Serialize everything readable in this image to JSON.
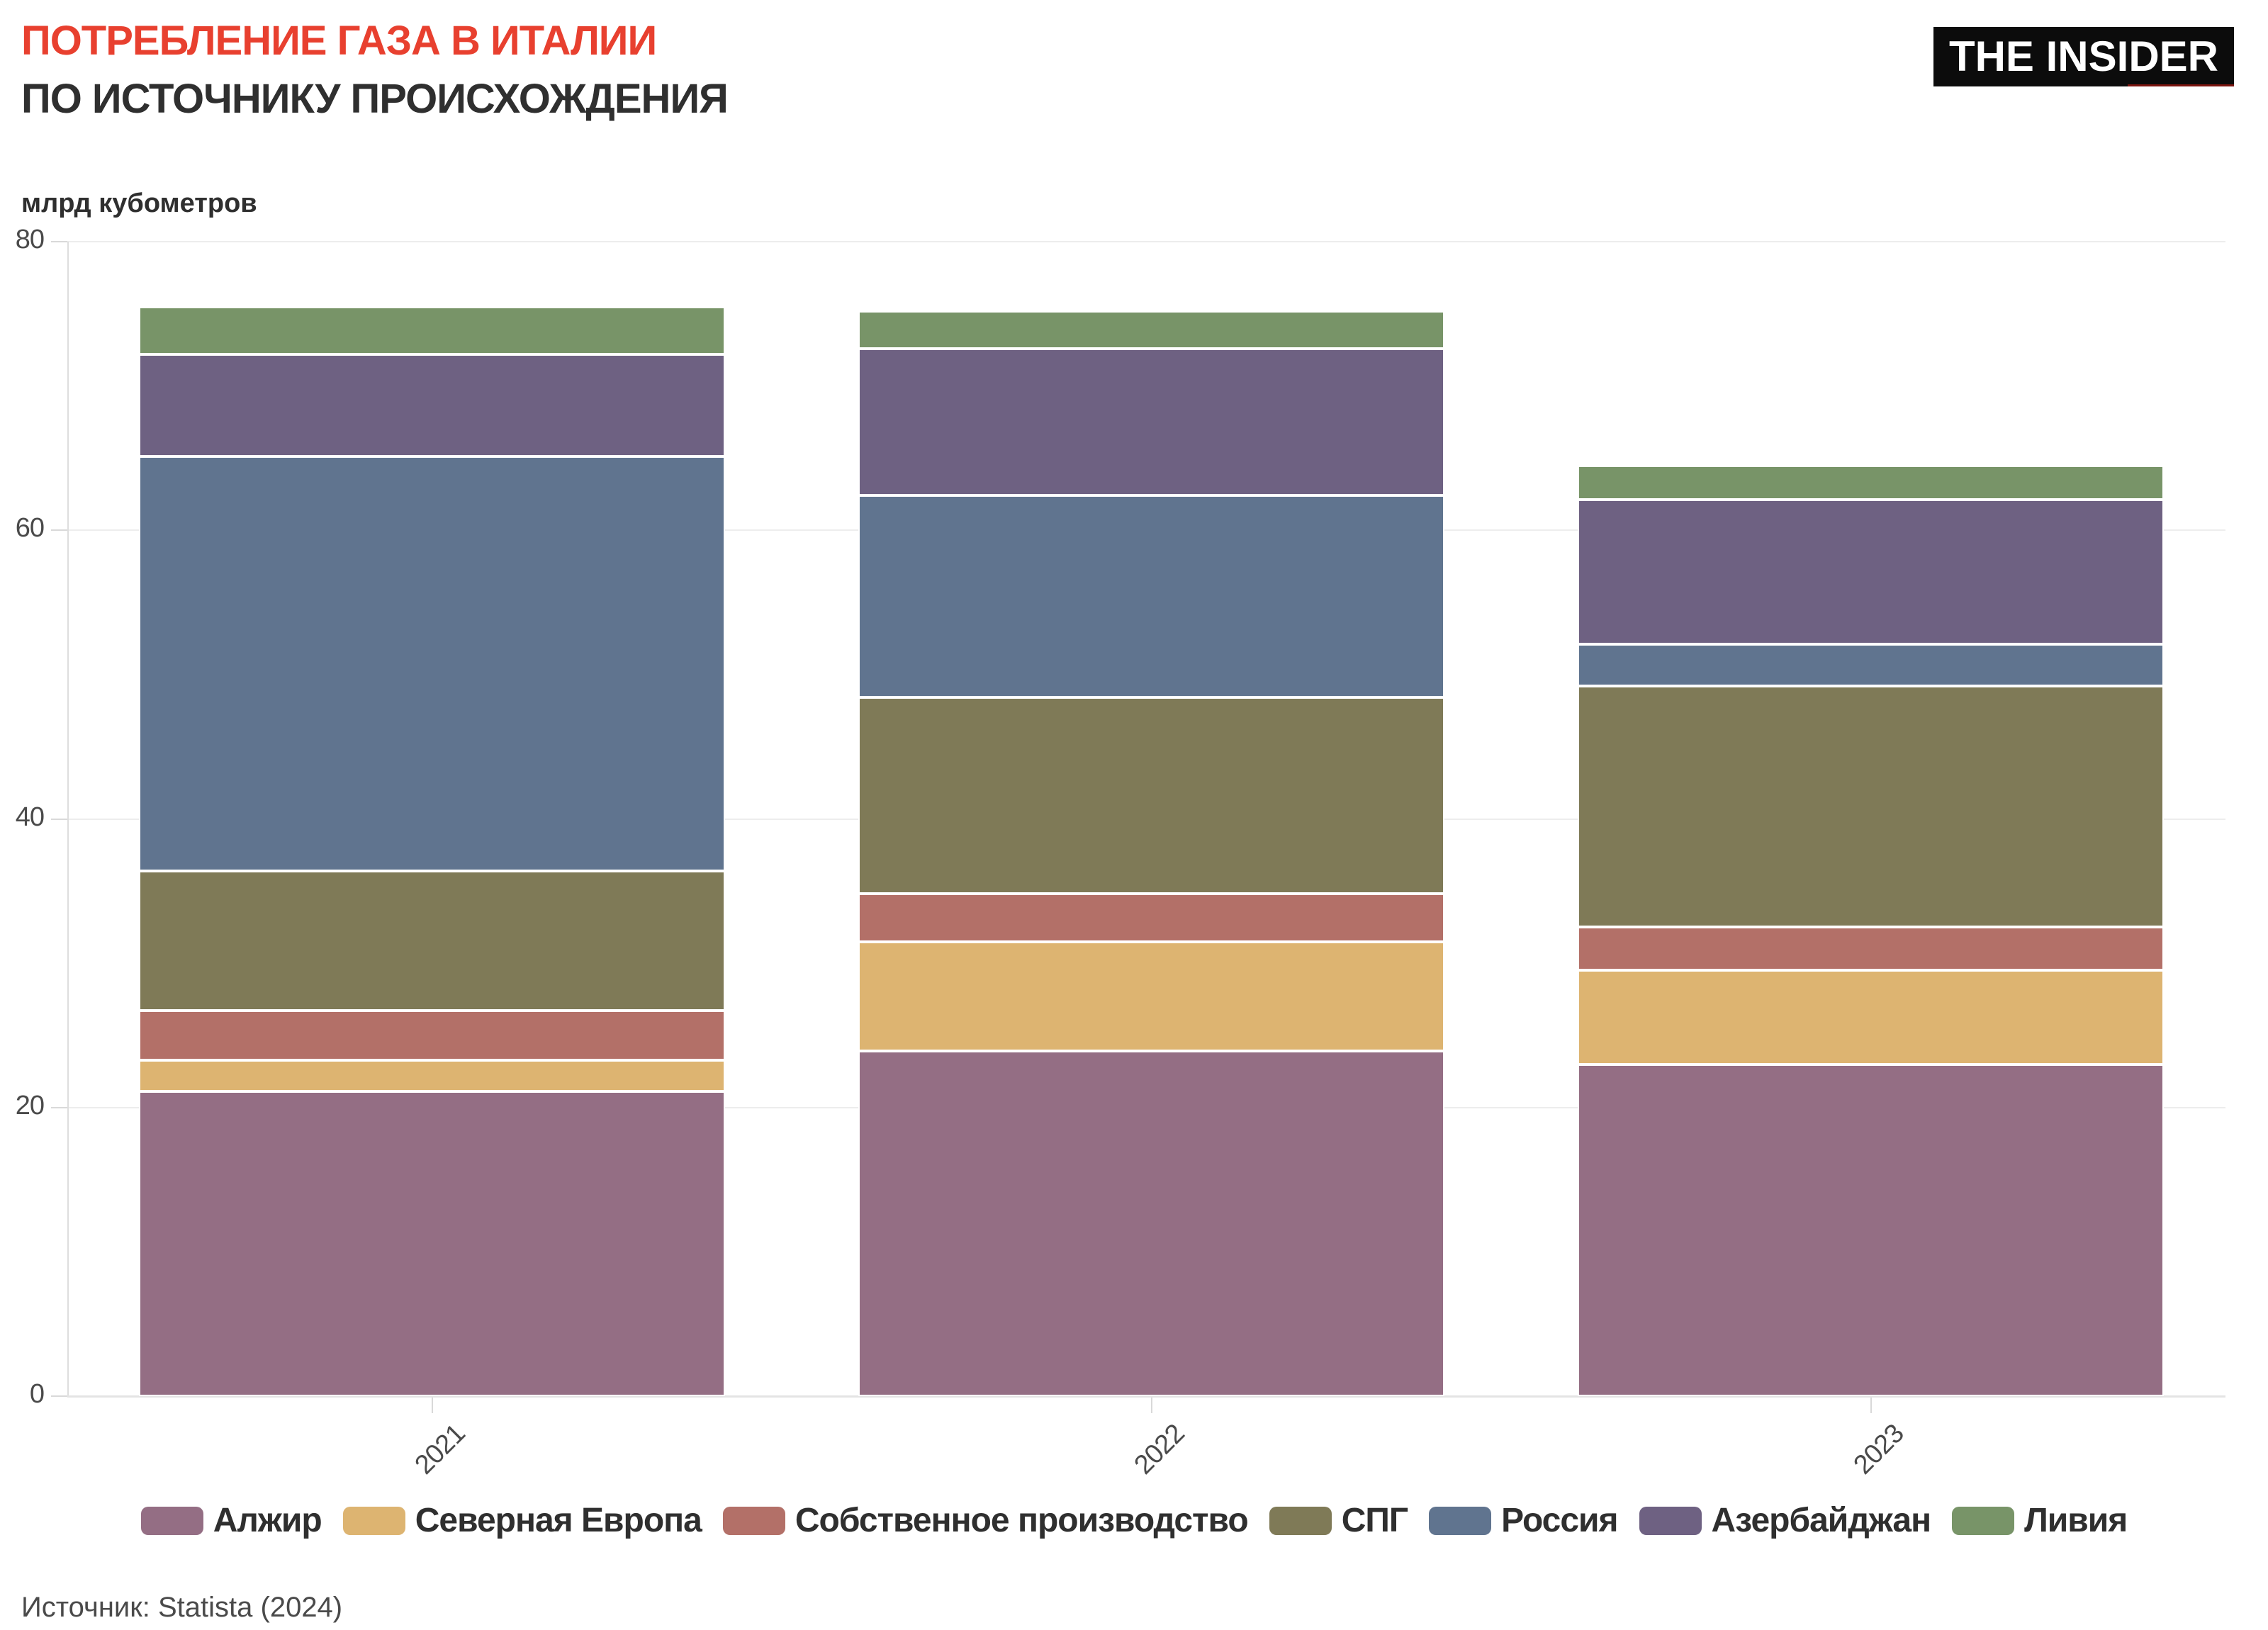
{
  "header": {
    "title": "ПОТРЕБЛЕНИЕ ГАЗА В ИТАЛИИ",
    "subtitle": "ПО ИСТОЧНИКУ ПРОИСХОЖДЕНИЯ",
    "logo_text": "THE INSIDER"
  },
  "axis": {
    "unit_label": "млрд кубометров",
    "y_ticks": [
      0,
      20,
      40,
      60,
      80
    ],
    "y_max": 80
  },
  "chart_data": {
    "type": "bar",
    "stacked": true,
    "title": "ПОТРЕБЛЕНИЕ ГАЗА В ИТАЛИИ ПО ИСТОЧНИКУ ПРОИСХОЖДЕНИЯ",
    "xlabel": "",
    "ylabel": "млрд кубометров",
    "ylim": [
      0,
      80
    ],
    "grid": true,
    "legend_position": "bottom",
    "categories": [
      "2021",
      "2022",
      "2023"
    ],
    "series": [
      {
        "name": "Алжир",
        "color": "#946E84",
        "values": [
          21.1,
          23.9,
          23.0
        ]
      },
      {
        "name": "Северная Европа",
        "color": "#DDB471",
        "values": [
          2.2,
          7.6,
          6.5
        ]
      },
      {
        "name": "Собственное производство",
        "color": "#B37068",
        "values": [
          3.4,
          3.3,
          3.0
        ]
      },
      {
        "name": "СПГ",
        "color": "#7F7A57",
        "values": [
          9.7,
          13.6,
          16.7
        ]
      },
      {
        "name": "Россия",
        "color": "#60748F",
        "values": [
          28.7,
          14.0,
          2.9
        ]
      },
      {
        "name": "Азербайджан",
        "color": "#6E6182",
        "values": [
          7.1,
          10.2,
          10.0
        ]
      },
      {
        "name": "Ливия",
        "color": "#789468",
        "values": [
          3.3,
          2.6,
          2.4
        ]
      }
    ],
    "totals": [
      75.5,
      75.2,
      64.5
    ]
  },
  "colors": {
    "title_accent": "#E8402F",
    "text_dark": "#2f2f2f",
    "tick_text": "#4a4a4a",
    "grid": "#ededed",
    "logo_bg": "#0c0c0c",
    "logo_underline": "#7b150f",
    "background": "#ffffff"
  },
  "source": "Источник: Statista (2024)"
}
